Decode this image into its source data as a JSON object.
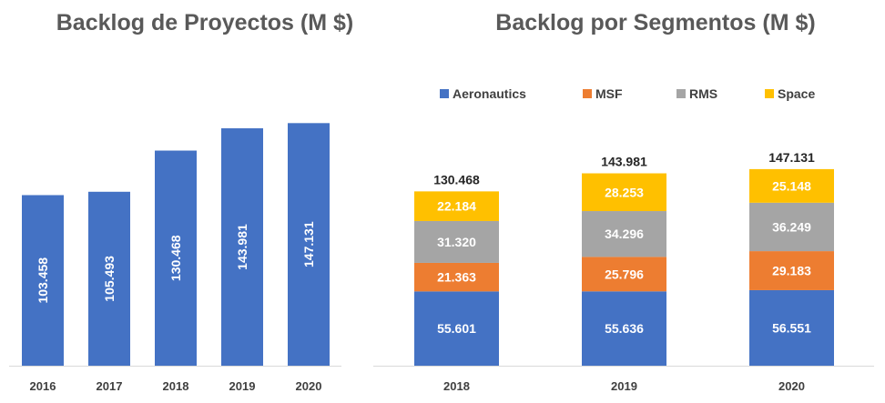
{
  "chart_data": [
    {
      "type": "bar",
      "title": "Backlog de Proyectos (M $)",
      "categories": [
        "2016",
        "2017",
        "2018",
        "2019",
        "2020"
      ],
      "values": [
        103.458,
        105.493,
        130.468,
        143.981,
        147.131
      ],
      "value_labels": [
        "103.458",
        "105.493",
        "130.468",
        "143.981",
        "147.131"
      ],
      "ylim": [
        0,
        160
      ],
      "grid": false,
      "color": "#4472C4"
    },
    {
      "type": "bar",
      "stacked": true,
      "title": "Backlog por Segmentos (M $)",
      "categories": [
        "2018",
        "2019",
        "2020"
      ],
      "legend_position": "top",
      "series": [
        {
          "name": "Aeronautics",
          "color": "#4472C4",
          "values": [
            55.601,
            55.636,
            56.551
          ],
          "labels": [
            "55.601",
            "55.636",
            "56.551"
          ]
        },
        {
          "name": "MSF",
          "color": "#ED7D31",
          "values": [
            21.363,
            25.796,
            29.183
          ],
          "labels": [
            "21.363",
            "25.796",
            "29.183"
          ]
        },
        {
          "name": "RMS",
          "color": "#A5A5A5",
          "values": [
            31.32,
            34.296,
            36.249
          ],
          "labels": [
            "31.320",
            "34.296",
            "36.249"
          ]
        },
        {
          "name": "Space",
          "color": "#FFC000",
          "values": [
            22.184,
            28.253,
            25.148
          ],
          "labels": [
            "22.184",
            "28.253",
            "25.148"
          ]
        }
      ],
      "totals": [
        "130.468",
        "143.981",
        "147.131"
      ],
      "ylim": [
        0,
        160
      ],
      "grid": false
    }
  ]
}
